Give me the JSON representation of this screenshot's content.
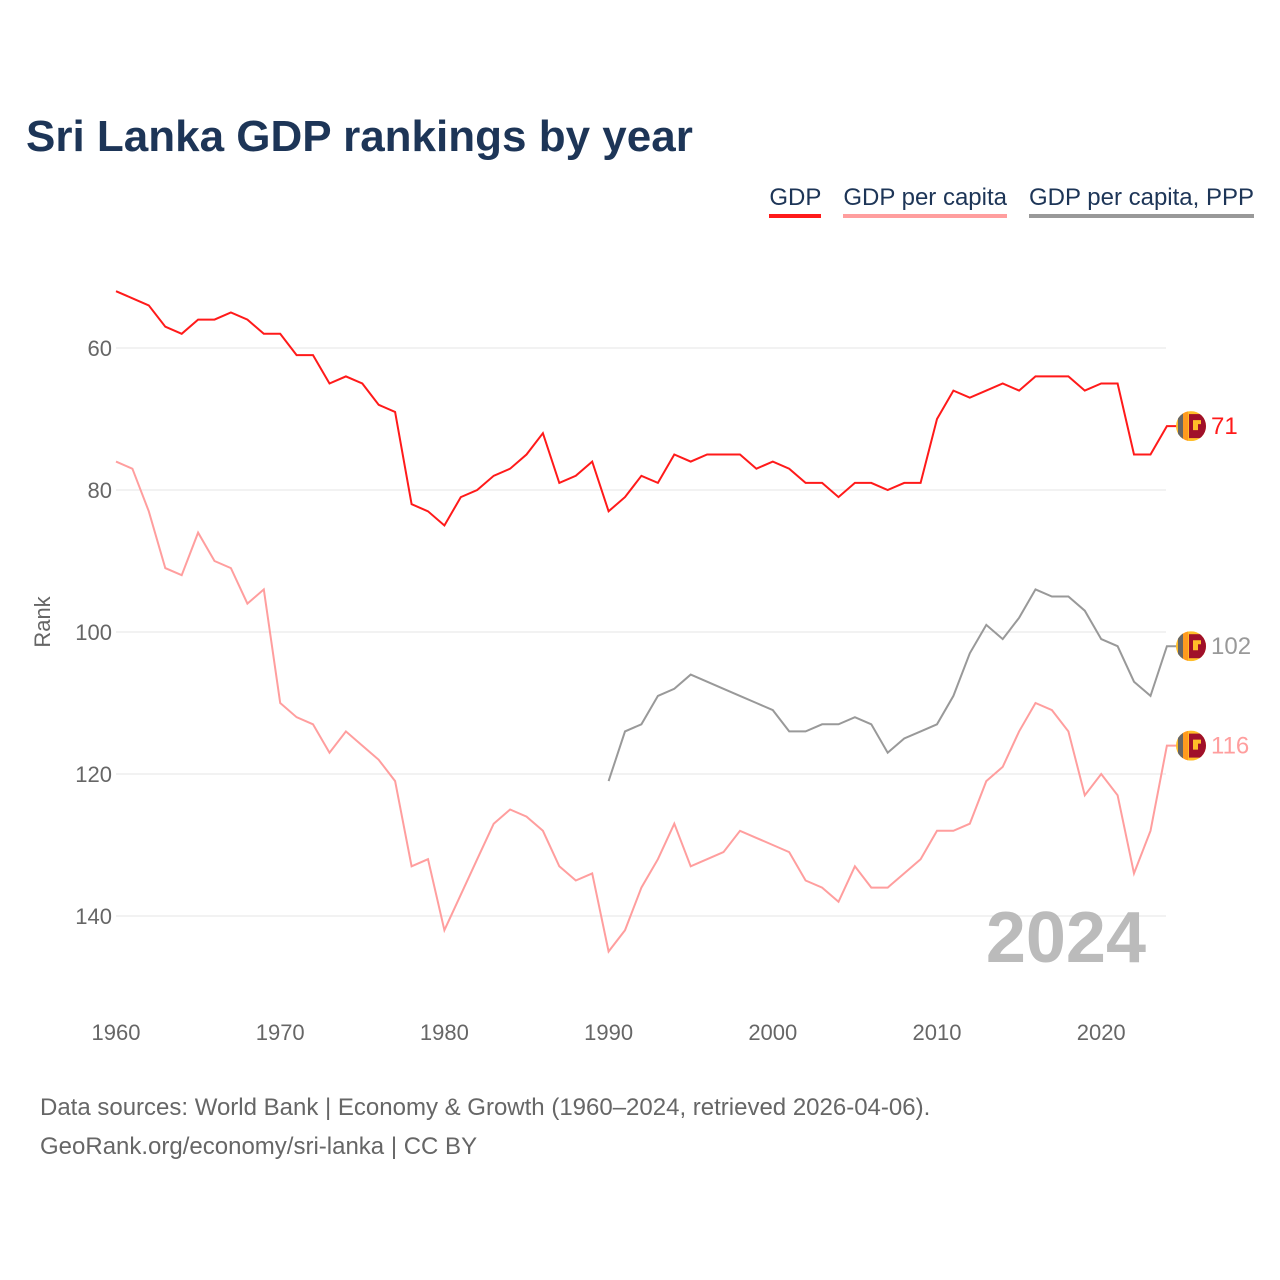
{
  "title": "Sri Lanka GDP rankings by year",
  "footer": {
    "line1": "Data sources: World Bank | Economy & Growth (1960–2024, retrieved 2026-04-06).",
    "line2": "GeoRank.org/economy/sri-lanka | CC BY"
  },
  "chart_data": {
    "type": "line",
    "title": "Sri Lanka GDP rankings by year",
    "xlabel": "",
    "ylabel": "Rank",
    "xlim": [
      1960,
      2024
    ],
    "ylim": [
      50,
      155
    ],
    "y_inverted": true,
    "grid": "horizontal",
    "legend_position": "top-right",
    "annotation": "2024",
    "x_ticks": [
      "1960",
      "1970",
      "1980",
      "1990",
      "2000",
      "2010",
      "2020"
    ],
    "y_ticks": [
      "60",
      "80",
      "100",
      "120",
      "140"
    ],
    "series": [
      {
        "name": "GDP",
        "color": "#ff1a1a",
        "start": 1960,
        "end_label": "71",
        "values": [
          52,
          53,
          54,
          57,
          58,
          56,
          56,
          55,
          56,
          58,
          58,
          61,
          61,
          65,
          64,
          65,
          68,
          69,
          82,
          83,
          85,
          81,
          80,
          78,
          77,
          75,
          72,
          79,
          78,
          76,
          83,
          81,
          78,
          79,
          75,
          76,
          75,
          75,
          75,
          77,
          76,
          77,
          79,
          79,
          81,
          79,
          79,
          80,
          79,
          79,
          70,
          66,
          67,
          66,
          65,
          66,
          64,
          64,
          64,
          66,
          65,
          65,
          75,
          75,
          71
        ]
      },
      {
        "name": "GDP per capita",
        "color": "#ff9e9e",
        "start": 1960,
        "end_label": "116",
        "values": [
          76,
          77,
          83,
          91,
          92,
          86,
          90,
          91,
          96,
          94,
          110,
          112,
          113,
          117,
          114,
          116,
          118,
          121,
          133,
          132,
          142,
          137,
          132,
          127,
          125,
          126,
          128,
          133,
          135,
          134,
          145,
          142,
          136,
          132,
          127,
          133,
          132,
          131,
          128,
          129,
          130,
          131,
          135,
          136,
          138,
          133,
          136,
          136,
          134,
          132,
          128,
          128,
          127,
          121,
          119,
          114,
          110,
          111,
          114,
          123,
          120,
          123,
          134,
          128,
          116
        ]
      },
      {
        "name": "GDP per capita, PPP",
        "color": "#999999",
        "start": 1990,
        "end_label": "102",
        "values": [
          121,
          114,
          113,
          109,
          108,
          106,
          107,
          108,
          109,
          110,
          111,
          114,
          114,
          113,
          113,
          112,
          113,
          117,
          115,
          114,
          113,
          109,
          103,
          99,
          101,
          98,
          94,
          95,
          95,
          97,
          101,
          102,
          107,
          109,
          102
        ]
      }
    ]
  }
}
